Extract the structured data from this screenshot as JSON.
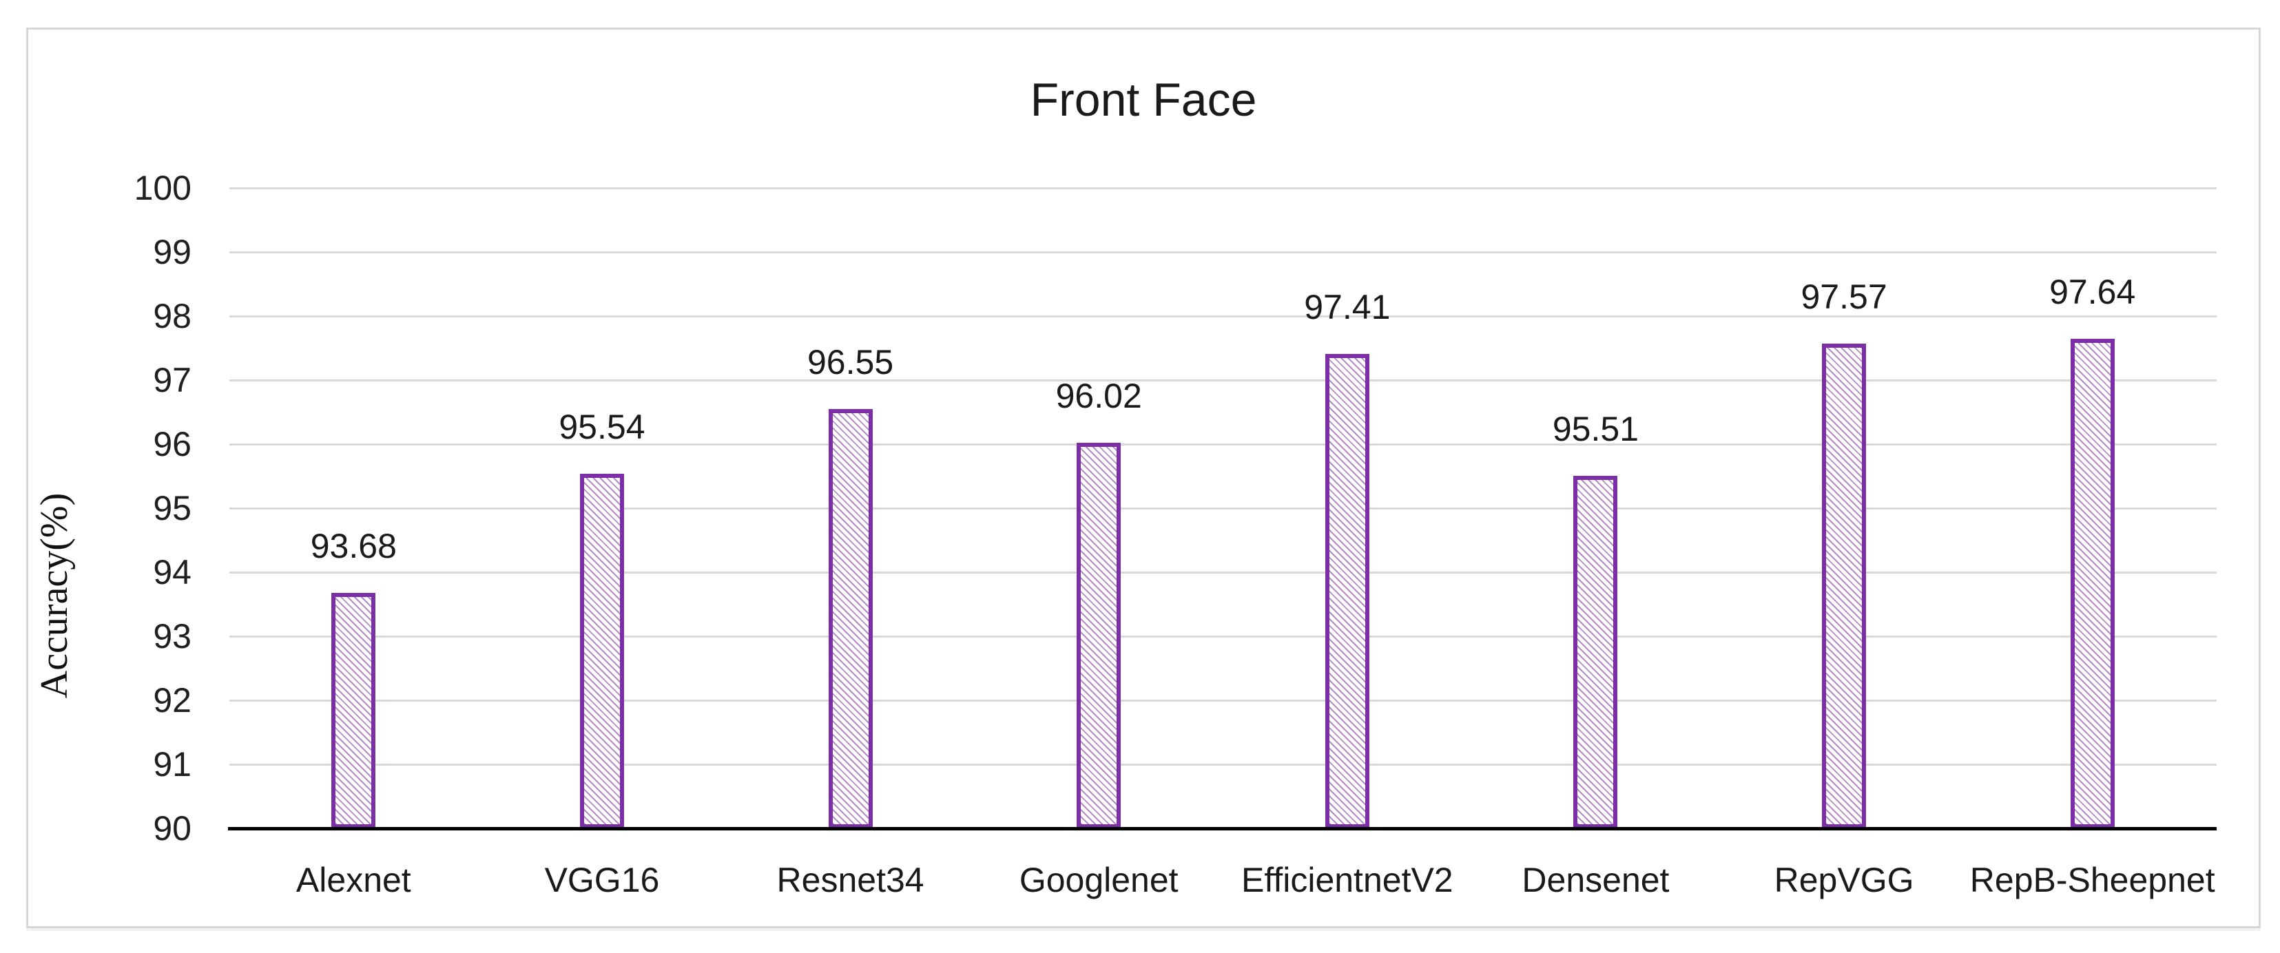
{
  "chart_title": "Front Face",
  "chart_data": {
    "type": "bar",
    "title": "Front Face",
    "categories": [
      "Alexnet",
      "VGG16",
      "Resnet34",
      "Googlenet",
      "EfficientnetV2",
      "Densenet",
      "RepVGG",
      "RepB-Sheepnet"
    ],
    "values": [
      93.68,
      95.54,
      96.55,
      96.02,
      97.41,
      95.51,
      97.57,
      97.64
    ],
    "data_labels": [
      "93.68",
      "95.54",
      "96.55",
      "96.02",
      "97.41",
      "95.51",
      "97.57",
      "97.64"
    ],
    "xlabel": "",
    "ylabel": "Accuracy(%)",
    "ylim": [
      90,
      100
    ],
    "yticks": [
      90,
      91,
      92,
      93,
      94,
      95,
      96,
      97,
      98,
      99,
      100
    ],
    "grid": true,
    "legend_position": "none",
    "data_labels_visible": true
  },
  "colors": {
    "bar_border": "#7C2EA6",
    "bar_hatch": "#B48CC6",
    "bar_fill_background": "#FFFFFF",
    "gridline": "#D9D9D9",
    "axis_line": "#000000",
    "text": "#1F1F1F",
    "frame_border": "#D6D6D6",
    "background": "#FFFFFF"
  }
}
